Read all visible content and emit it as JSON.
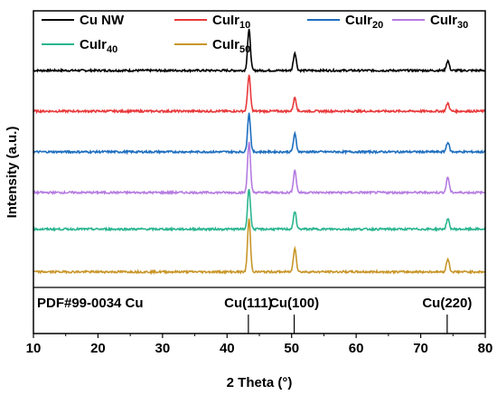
{
  "chart_data": {
    "type": "line",
    "title": "",
    "xlabel": "2 Theta (°)",
    "ylabel": "Intensity (a.u.)",
    "xlim": [
      10,
      80
    ],
    "x_ticks": [
      10,
      20,
      30,
      40,
      50,
      60,
      70,
      80
    ],
    "y_ticks_shown": false,
    "grid": false,
    "legend_position": "top, inside plot, 4 columns",
    "series": [
      {
        "name": "Cu NW",
        "name_parts": [
          "Cu NW"
        ],
        "color": "#000000",
        "offset": 5.2,
        "peaks": [
          {
            "x": 43.4,
            "h": 1.0
          },
          {
            "x": 50.5,
            "h": 0.44
          },
          {
            "x": 74.2,
            "h": 0.24
          }
        ]
      },
      {
        "name": "CuIr10",
        "name_parts": [
          "CuIr",
          "10"
        ],
        "color": "#e8393b",
        "offset": 4.2,
        "peaks": [
          {
            "x": 43.4,
            "h": 0.88
          },
          {
            "x": 50.5,
            "h": 0.34
          },
          {
            "x": 74.2,
            "h": 0.2
          }
        ]
      },
      {
        "name": "CuIr20",
        "name_parts": [
          "CuIr",
          "20"
        ],
        "color": "#1f6fbf",
        "offset": 3.2,
        "peaks": [
          {
            "x": 43.4,
            "h": 0.95
          },
          {
            "x": 50.5,
            "h": 0.44
          },
          {
            "x": 74.2,
            "h": 0.24
          }
        ]
      },
      {
        "name": "CuIr30",
        "name_parts": [
          "CuIr",
          "30"
        ],
        "color": "#b57be0",
        "offset": 2.2,
        "peaks": [
          {
            "x": 43.4,
            "h": 1.25
          },
          {
            "x": 50.5,
            "h": 0.55
          },
          {
            "x": 74.2,
            "h": 0.38
          }
        ]
      },
      {
        "name": "CuIr40",
        "name_parts": [
          "CuIr",
          "40"
        ],
        "color": "#2ab58f",
        "offset": 1.3,
        "peaks": [
          {
            "x": 43.4,
            "h": 1.0
          },
          {
            "x": 50.5,
            "h": 0.43
          },
          {
            "x": 74.2,
            "h": 0.25
          }
        ]
      },
      {
        "name": "CuIr50",
        "name_parts": [
          "CuIr",
          "50"
        ],
        "color": "#c8962a",
        "offset": 0.25,
        "peaks": [
          {
            "x": 43.4,
            "h": 1.3
          },
          {
            "x": 50.5,
            "h": 0.6
          },
          {
            "x": 74.2,
            "h": 0.32
          }
        ]
      }
    ],
    "reference": {
      "label": "PDF#99-0034 Cu",
      "lines": [
        {
          "x": 43.3,
          "label": "Cu(111)"
        },
        {
          "x": 50.4,
          "label": "Cu(100)"
        },
        {
          "x": 74.1,
          "label": "Cu(220)"
        }
      ]
    }
  }
}
